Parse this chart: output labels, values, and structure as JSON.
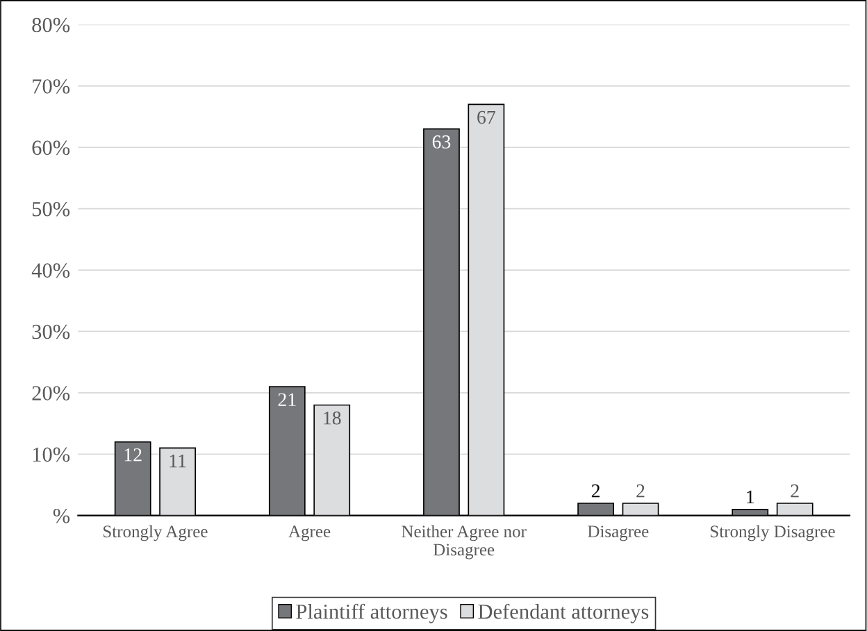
{
  "chart_data": {
    "type": "bar",
    "categories": [
      "Strongly Agree",
      "Agree",
      "Neither Agree nor\nDisagree",
      "Disagree",
      "Strongly Disagree"
    ],
    "series": [
      {
        "name": "Plaintiff attorneys",
        "color": "#76777b",
        "values": [
          12,
          21,
          63,
          2,
          1
        ]
      },
      {
        "name": "Defendant attorneys",
        "color": "#dcdddf",
        "values": [
          11,
          18,
          67,
          2,
          2
        ]
      }
    ],
    "ylim": [
      0,
      80
    ],
    "yticks": [
      {
        "value": 0,
        "label": "%"
      },
      {
        "value": 10,
        "label": "10%"
      },
      {
        "value": 20,
        "label": "20%"
      },
      {
        "value": 30,
        "label": "30%"
      },
      {
        "value": 40,
        "label": "40%"
      },
      {
        "value": 50,
        "label": "50%"
      },
      {
        "value": 60,
        "label": "60%"
      },
      {
        "value": 70,
        "label": "70%"
      },
      {
        "value": 80,
        "label": "80%"
      }
    ],
    "grid": "y",
    "legend": "bottom",
    "data_labels": true
  }
}
